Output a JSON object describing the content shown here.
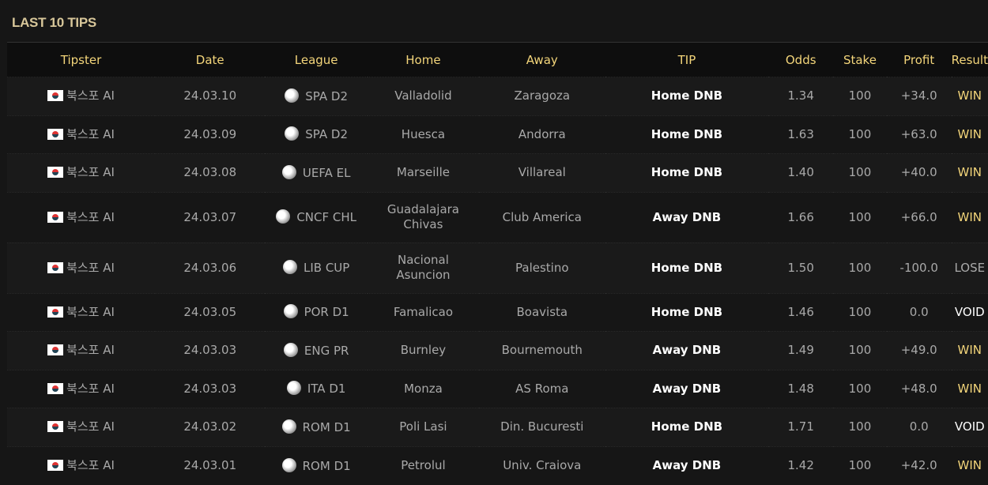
{
  "title": "LAST 10 TIPS",
  "columns": [
    "Tipster",
    "Date",
    "League",
    "Home",
    "Away",
    "TIP",
    "Odds",
    "Stake",
    "Profit",
    "Result"
  ],
  "result_colors": {
    "WIN": "#f3d57a",
    "LOSE": "#aaaaaa",
    "VOID": "#ffffff"
  },
  "rows": [
    {
      "tipster": "북스포 AI",
      "date": "24.03.10",
      "league": "SPA D2",
      "home": "Valladolid",
      "away": "Zaragoza",
      "tip": "Home DNB",
      "odds": "1.34",
      "stake": "100",
      "profit": "+34.0",
      "result": "WIN"
    },
    {
      "tipster": "북스포 AI",
      "date": "24.03.09",
      "league": "SPA D2",
      "home": "Huesca",
      "away": "Andorra",
      "tip": "Home DNB",
      "odds": "1.63",
      "stake": "100",
      "profit": "+63.0",
      "result": "WIN"
    },
    {
      "tipster": "북스포 AI",
      "date": "24.03.08",
      "league": "UEFA EL",
      "home": "Marseille",
      "away": "Villareal",
      "tip": "Home DNB",
      "odds": "1.40",
      "stake": "100",
      "profit": "+40.0",
      "result": "WIN"
    },
    {
      "tipster": "북스포 AI",
      "date": "24.03.07",
      "league": "CNCF CHL",
      "home": "Guadalajara Chivas",
      "away": "Club America",
      "tip": "Away DNB",
      "odds": "1.66",
      "stake": "100",
      "profit": "+66.0",
      "result": "WIN"
    },
    {
      "tipster": "북스포 AI",
      "date": "24.03.06",
      "league": "LIB CUP",
      "home": "Nacional Asuncion",
      "away": "Palestino",
      "tip": "Home DNB",
      "odds": "1.50",
      "stake": "100",
      "profit": "-100.0",
      "result": "LOSE"
    },
    {
      "tipster": "북스포 AI",
      "date": "24.03.05",
      "league": "POR D1",
      "home": "Famalicao",
      "away": "Boavista",
      "tip": "Home DNB",
      "odds": "1.46",
      "stake": "100",
      "profit": "0.0",
      "result": "VOID"
    },
    {
      "tipster": "북스포 AI",
      "date": "24.03.03",
      "league": "ENG PR",
      "home": "Burnley",
      "away": "Bournemouth",
      "tip": "Away DNB",
      "odds": "1.49",
      "stake": "100",
      "profit": "+49.0",
      "result": "WIN"
    },
    {
      "tipster": "북스포 AI",
      "date": "24.03.03",
      "league": "ITA D1",
      "home": "Monza",
      "away": "AS Roma",
      "tip": "Away DNB",
      "odds": "1.48",
      "stake": "100",
      "profit": "+48.0",
      "result": "WIN"
    },
    {
      "tipster": "북스포 AI",
      "date": "24.03.02",
      "league": "ROM D1",
      "home": "Poli Lasi",
      "away": "Din. Bucuresti",
      "tip": "Home DNB",
      "odds": "1.71",
      "stake": "100",
      "profit": "0.0",
      "result": "VOID"
    },
    {
      "tipster": "북스포 AI",
      "date": "24.03.01",
      "league": "ROM D1",
      "home": "Petrolul",
      "away": "Univ. Craiova",
      "tip": "Away DNB",
      "odds": "1.42",
      "stake": "100",
      "profit": "+42.0",
      "result": "WIN"
    }
  ]
}
